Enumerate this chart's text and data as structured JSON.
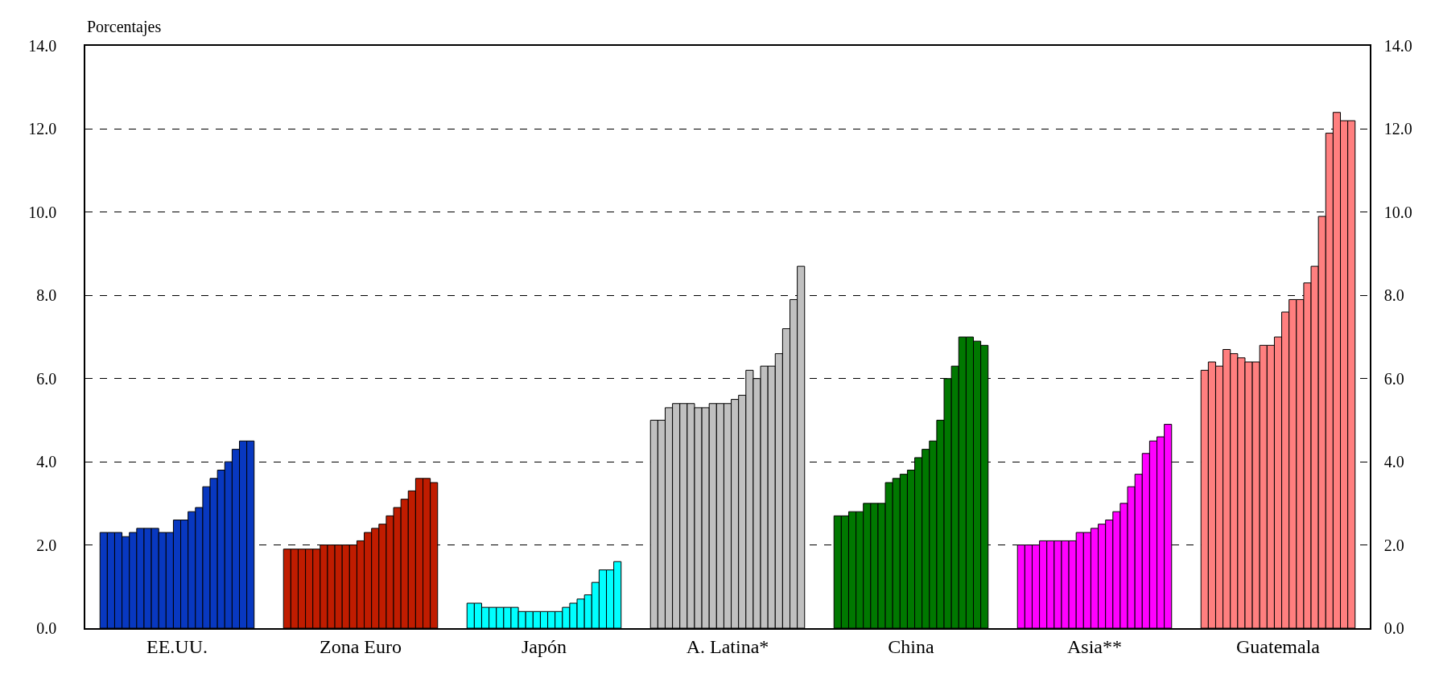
{
  "chart_data": {
    "type": "bar",
    "ylabel": "Porcentajes",
    "categories": [
      "EE.UU.",
      "Zona Euro",
      "Japón",
      "A. Latina*",
      "China",
      "Asia**",
      "Guatemala"
    ],
    "ylim": [
      0,
      14
    ],
    "yticks": [
      {
        "value": 0,
        "label": "0.0"
      },
      {
        "value": 2,
        "label": "2.0"
      },
      {
        "value": 4,
        "label": "4.0"
      },
      {
        "value": 6,
        "label": "6.0"
      },
      {
        "value": 8,
        "label": "8.0"
      },
      {
        "value": 10,
        "label": "10.0"
      },
      {
        "value": 12,
        "label": "12.0"
      },
      {
        "value": 14,
        "label": "14.0"
      }
    ],
    "y2lim": [
      0,
      14
    ],
    "y2ticks": [
      {
        "value": 0,
        "label": "0.0"
      },
      {
        "value": 2,
        "label": "2.0"
      },
      {
        "value": 4,
        "label": "4.0"
      },
      {
        "value": 6,
        "label": "6.0"
      },
      {
        "value": 8,
        "label": "8.0"
      },
      {
        "value": 10,
        "label": "10.0"
      },
      {
        "value": 12,
        "label": "12.0"
      },
      {
        "value": 14,
        "label": "14.0"
      }
    ],
    "grid": "y",
    "series": [
      {
        "colors": [
          "#0838c0",
          "#c01c00",
          "#00ffff",
          "#c0c0c0",
          "#007800",
          "#ff00ff",
          "#ff7f7f"
        ],
        "values": [
          2.3,
          1.9,
          0.6,
          5.0,
          2.7,
          2.0,
          6.2
        ]
      },
      {
        "colors": [
          "#0838c0",
          "#c01c00",
          "#00ffff",
          "#c0c0c0",
          "#007800",
          "#ff00ff",
          "#ff7f7f"
        ],
        "values": [
          2.3,
          1.9,
          0.6,
          5.0,
          2.7,
          2.0,
          6.4
        ]
      },
      {
        "colors": [
          "#0838c0",
          "#c01c00",
          "#00ffff",
          "#c0c0c0",
          "#007800",
          "#ff00ff",
          "#ff7f7f"
        ],
        "values": [
          2.3,
          1.9,
          0.5,
          5.3,
          2.8,
          2.0,
          6.3
        ]
      },
      {
        "colors": [
          "#0838c0",
          "#c01c00",
          "#00ffff",
          "#c0c0c0",
          "#007800",
          "#ff00ff",
          "#ff7f7f"
        ],
        "values": [
          2.2,
          1.9,
          0.5,
          5.4,
          2.8,
          2.1,
          6.7
        ]
      },
      {
        "colors": [
          "#0838c0",
          "#c01c00",
          "#00ffff",
          "#c0c0c0",
          "#007800",
          "#ff00ff",
          "#ff7f7f"
        ],
        "values": [
          2.3,
          1.9,
          0.5,
          5.4,
          3.0,
          2.1,
          6.6
        ]
      },
      {
        "colors": [
          "#0838c0",
          "#c01c00",
          "#00ffff",
          "#c0c0c0",
          "#007800",
          "#ff00ff",
          "#ff7f7f"
        ],
        "values": [
          2.4,
          2.0,
          0.5,
          5.4,
          3.0,
          2.1,
          6.5
        ]
      },
      {
        "colors": [
          "#0838c0",
          "#c01c00",
          "#00ffff",
          "#c0c0c0",
          "#007800",
          "#ff00ff",
          "#ff7f7f"
        ],
        "values": [
          2.4,
          2.0,
          0.5,
          5.3,
          3.0,
          2.1,
          6.4
        ]
      },
      {
        "colors": [
          "#0838c0",
          "#c01c00",
          "#00ffff",
          "#c0c0c0",
          "#007800",
          "#ff00ff",
          "#ff7f7f"
        ],
        "values": [
          2.4,
          2.0,
          0.4,
          5.3,
          3.5,
          2.1,
          6.4
        ]
      },
      {
        "colors": [
          "#0838c0",
          "#c01c00",
          "#00ffff",
          "#c0c0c0",
          "#007800",
          "#ff00ff",
          "#ff7f7f"
        ],
        "values": [
          2.3,
          2.0,
          0.4,
          5.4,
          3.6,
          2.3,
          6.8
        ]
      },
      {
        "colors": [
          "#0838c0",
          "#c01c00",
          "#00ffff",
          "#c0c0c0",
          "#007800",
          "#ff00ff",
          "#ff7f7f"
        ],
        "values": [
          2.3,
          2.0,
          0.4,
          5.4,
          3.7,
          2.3,
          6.8
        ]
      },
      {
        "colors": [
          "#0838c0",
          "#c01c00",
          "#00ffff",
          "#c0c0c0",
          "#007800",
          "#ff00ff",
          "#ff7f7f"
        ],
        "values": [
          2.6,
          2.1,
          0.4,
          5.4,
          3.8,
          2.4,
          7.0
        ]
      },
      {
        "colors": [
          "#0838c0",
          "#c01c00",
          "#00ffff",
          "#c0c0c0",
          "#007800",
          "#ff00ff",
          "#ff7f7f"
        ],
        "values": [
          2.6,
          2.3,
          0.4,
          5.5,
          4.1,
          2.5,
          7.6
        ]
      },
      {
        "colors": [
          "#0838c0",
          "#c01c00",
          "#00ffff",
          "#c0c0c0",
          "#007800",
          "#ff00ff",
          "#ff7f7f"
        ],
        "values": [
          2.8,
          2.4,
          0.4,
          5.6,
          4.3,
          2.6,
          7.9
        ]
      },
      {
        "colors": [
          "#0838c0",
          "#c01c00",
          "#00ffff",
          "#c0c0c0",
          "#007800",
          "#ff00ff",
          "#ff7f7f"
        ],
        "values": [
          2.9,
          2.5,
          0.5,
          6.2,
          4.5,
          2.8,
          7.9
        ]
      },
      {
        "colors": [
          "#0838c0",
          "#c01c00",
          "#00ffff",
          "#c0c0c0",
          "#007800",
          "#ff00ff",
          "#ff7f7f"
        ],
        "values": [
          3.4,
          2.7,
          0.6,
          6.0,
          5.0,
          3.0,
          8.3
        ]
      },
      {
        "colors": [
          "#0838c0",
          "#c01c00",
          "#00ffff",
          "#c0c0c0",
          "#007800",
          "#ff00ff",
          "#ff7f7f"
        ],
        "values": [
          3.6,
          2.9,
          0.7,
          6.3,
          6.0,
          3.4,
          8.7
        ]
      },
      {
        "colors": [
          "#0838c0",
          "#c01c00",
          "#00ffff",
          "#c0c0c0",
          "#007800",
          "#ff00ff",
          "#ff7f7f"
        ],
        "values": [
          3.8,
          3.1,
          0.8,
          6.3,
          6.3,
          3.7,
          9.9
        ]
      },
      {
        "colors": [
          "#0838c0",
          "#c01c00",
          "#00ffff",
          "#c0c0c0",
          "#007800",
          "#ff00ff",
          "#ff7f7f"
        ],
        "values": [
          4.0,
          3.3,
          1.1,
          6.6,
          7.0,
          4.2,
          11.9
        ]
      },
      {
        "colors": [
          "#0838c0",
          "#c01c00",
          "#00ffff",
          "#c0c0c0",
          "#007800",
          "#ff00ff",
          "#ff7f7f"
        ],
        "values": [
          4.3,
          3.6,
          1.4,
          7.2,
          7.0,
          4.5,
          12.4
        ]
      },
      {
        "colors": [
          "#0838c0",
          "#c01c00",
          "#00ffff",
          "#c0c0c0",
          "#007800",
          "#ff00ff",
          "#ff7f7f"
        ],
        "values": [
          4.5,
          3.6,
          1.4,
          7.9,
          6.9,
          4.6,
          12.2
        ]
      },
      {
        "colors": [
          "#0838c0",
          "#c01c00",
          "#00ffff",
          "#c0c0c0",
          "#007800",
          "#ff00ff",
          "#ff7f7f"
        ],
        "values": [
          4.5,
          3.5,
          1.6,
          8.7,
          6.8,
          4.9,
          12.2
        ]
      }
    ]
  }
}
